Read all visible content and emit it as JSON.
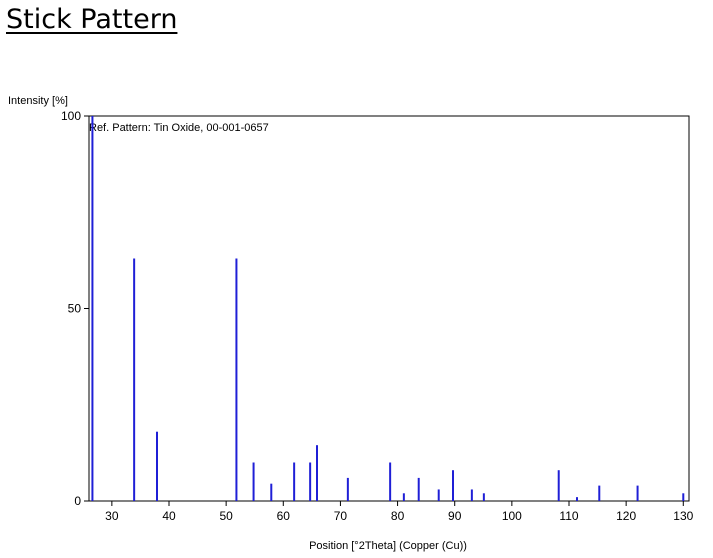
{
  "page": {
    "heading": "Stick Pattern"
  },
  "chart_data": {
    "type": "bar",
    "style": "stick",
    "ylabel": "Intensity [%]",
    "xlabel": "Position [°2Theta] (Copper (Cu))",
    "annotation": "Ref. Pattern: Tin Oxide, 00-001-0657",
    "xlim": [
      26,
      131
    ],
    "ylim": [
      0,
      100
    ],
    "xticks": [
      30,
      40,
      50,
      60,
      70,
      80,
      90,
      100,
      110,
      120,
      130
    ],
    "yticks": [
      0,
      50,
      100
    ],
    "stick_color": "#1f1fd6",
    "grid": false,
    "series": [
      {
        "x": [
          26.6,
          33.9,
          37.9,
          51.8,
          54.8,
          57.9,
          61.9,
          64.7,
          65.9,
          71.3,
          78.7,
          81.1,
          83.7,
          87.2,
          89.7,
          93.0,
          95.1,
          108.2,
          111.4,
          115.3,
          122.0,
          130.0
        ],
        "values": [
          100,
          63,
          18,
          63,
          10,
          4.5,
          10,
          10,
          14.5,
          6,
          10,
          2,
          6,
          3,
          8,
          3,
          2,
          8,
          1,
          4,
          4,
          2
        ]
      }
    ]
  }
}
